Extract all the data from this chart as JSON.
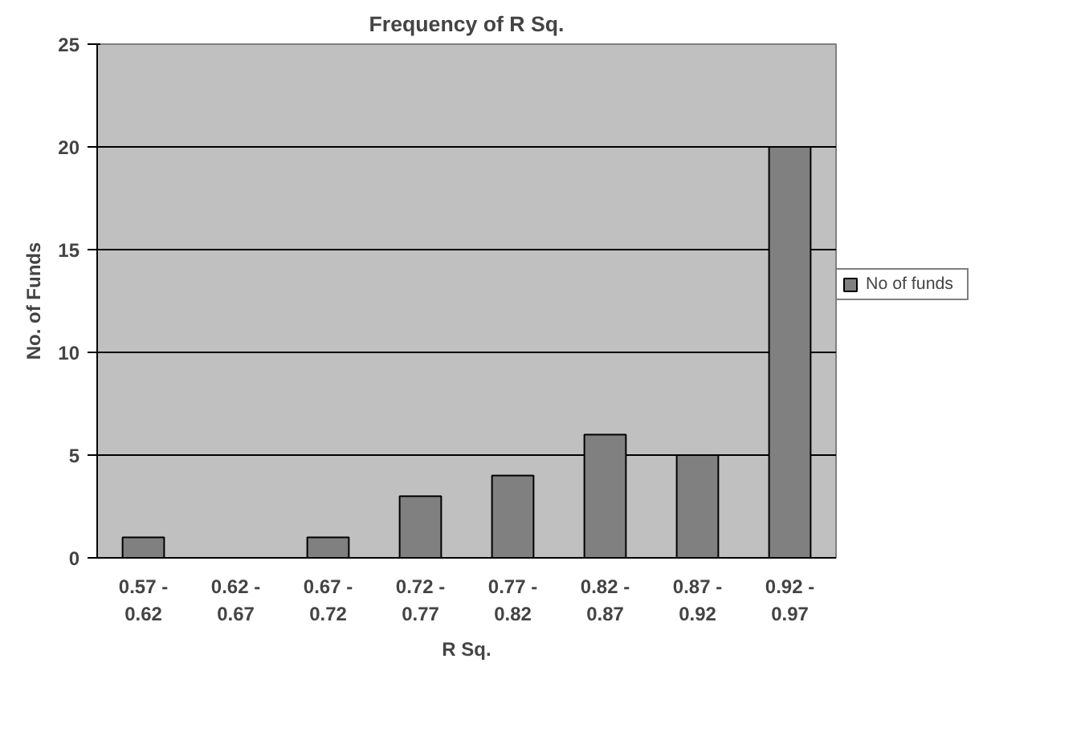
{
  "chart_data": {
    "type": "bar",
    "title": "Frequency of R Sq.",
    "xlabel": "R Sq.",
    "ylabel": "No. of Funds",
    "categories": [
      "0.57 - 0.62",
      "0.62 - 0.67",
      "0.67 - 0.72",
      "0.72 - 0.77",
      "0.77 - 0.82",
      "0.82 - 0.87",
      "0.87 - 0.92",
      "0.92 - 0.97"
    ],
    "series": [
      {
        "name": "No of funds",
        "color": "#808080",
        "values": [
          1,
          0,
          1,
          3,
          4,
          6,
          5,
          20
        ]
      }
    ],
    "ylim": [
      0,
      25
    ],
    "yticks": [
      0,
      5,
      10,
      15,
      20,
      25
    ],
    "grid": "y",
    "legend": "right"
  }
}
